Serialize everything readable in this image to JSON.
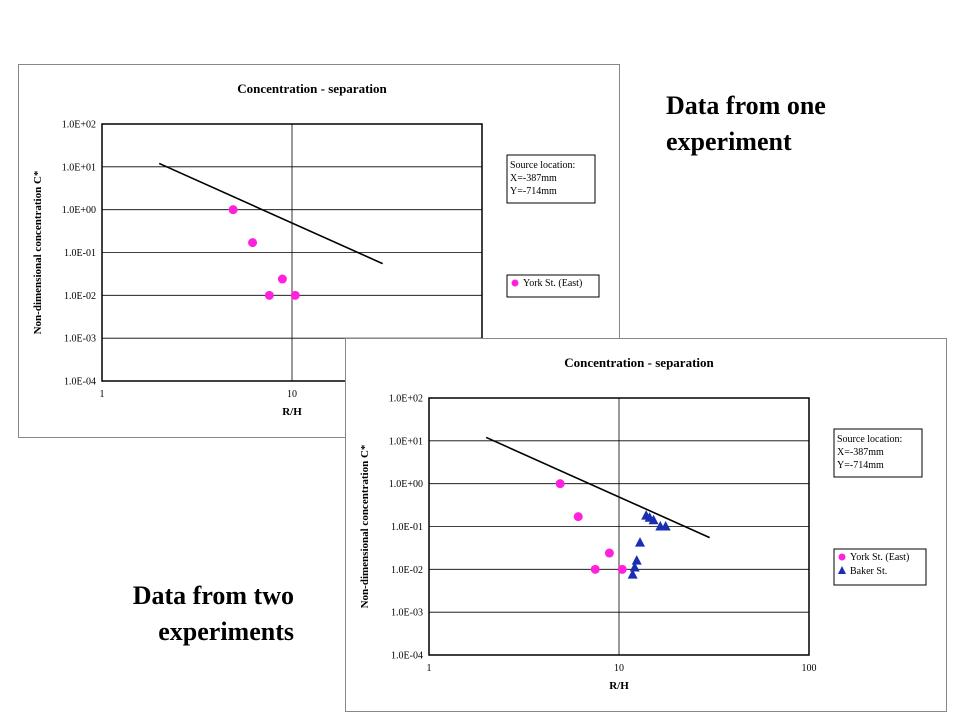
{
  "captions": {
    "one": [
      "Data from one",
      "experiment"
    ],
    "two": [
      "Data from two",
      "experiments"
    ]
  },
  "colors": {
    "york": "#ff22dd",
    "baker": "#1a2eb0",
    "fit_line": "#000000",
    "grid": "#000000"
  },
  "chart_data": [
    {
      "type": "scatter",
      "title": "Concentration - separation",
      "xlabel": "R/H",
      "ylabel": "Non-dimensional concentration C*",
      "x_scale": "log",
      "y_scale": "log",
      "xlim": [
        1,
        100
      ],
      "ylim": [
        0.0001,
        100
      ],
      "x_ticks": [
        "1",
        "10"
      ],
      "y_ticks": [
        "1.0E-04",
        "1.0E-03",
        "1.0E-02",
        "1.0E-01",
        "1.0E+00",
        "1.0E+01",
        "1.0E+02"
      ],
      "grid": true,
      "info_box": [
        "Source location:",
        "X=-387mm",
        "Y=-714mm"
      ],
      "legend_position": "right",
      "fit_line": {
        "x": [
          2,
          30
        ],
        "y": [
          12,
          0.055
        ]
      },
      "series": [
        {
          "name": "York St. (East)",
          "marker": "circle",
          "color_key": "york",
          "x": [
            4.9,
            6.2,
            7.6,
            8.9,
            10.4
          ],
          "y": [
            1.0,
            0.17,
            0.01,
            0.024,
            0.01
          ]
        }
      ]
    },
    {
      "type": "scatter",
      "title": "Concentration - separation",
      "xlabel": "R/H",
      "ylabel": "Non-dimensional concentration C*",
      "x_scale": "log",
      "y_scale": "log",
      "xlim": [
        1,
        100
      ],
      "ylim": [
        0.0001,
        100
      ],
      "x_ticks": [
        "1",
        "10",
        "100"
      ],
      "y_ticks": [
        "1.0E-04",
        "1.0E-03",
        "1.0E-02",
        "1.0E-01",
        "1.0E+00",
        "1.0E+01",
        "1.0E+02"
      ],
      "grid": true,
      "info_box": [
        "Source location:",
        "X=-387mm",
        "Y=-714mm"
      ],
      "legend_position": "right",
      "fit_line": {
        "x": [
          2,
          30
        ],
        "y": [
          12,
          0.055
        ]
      },
      "series": [
        {
          "name": "York St. (East)",
          "marker": "circle",
          "color_key": "york",
          "x": [
            4.9,
            6.1,
            7.5,
            8.9,
            10.4
          ],
          "y": [
            1.0,
            0.17,
            0.01,
            0.024,
            0.01
          ]
        },
        {
          "name": "Baker St.",
          "marker": "triangle",
          "color_key": "baker",
          "x": [
            11.8,
            12.1,
            12.4,
            12.9,
            13.9,
            14.5,
            15.2,
            16.5,
            17.6
          ],
          "y": [
            0.0075,
            0.011,
            0.016,
            0.042,
            0.18,
            0.16,
            0.14,
            0.1,
            0.1
          ]
        }
      ]
    }
  ]
}
